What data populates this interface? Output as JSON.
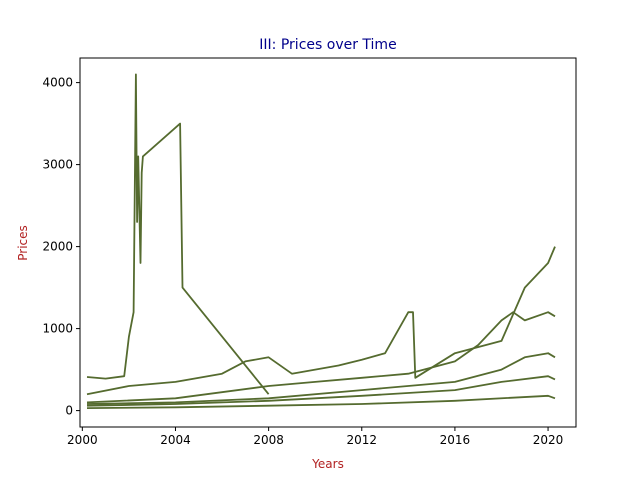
{
  "chart_data": {
    "type": "line",
    "title": "III: Prices over Time",
    "xlabel": "Years",
    "ylabel": "Prices",
    "xlim": [
      1999.9,
      2021.2
    ],
    "ylim": [
      -200,
      4300
    ],
    "x_ticks": [
      2000,
      2004,
      2008,
      2012,
      2016,
      2020
    ],
    "x_tick_labels": [
      "2000",
      "2004",
      "2008",
      "2012",
      "2016",
      "2020"
    ],
    "y_ticks": [
      0,
      1000,
      2000,
      3000,
      4000
    ],
    "y_tick_labels": [
      "0",
      "1000",
      "2000",
      "3000",
      "4000"
    ],
    "grid": false,
    "legend": "none",
    "colors": {
      "line": "#556b2f",
      "title": "#00008b",
      "axis_label": "#b22222"
    },
    "series": [
      {
        "x": [
          2000.2,
          2001.0,
          2001.8,
          2002.0,
          2002.2,
          2002.3,
          2002.35,
          2002.4,
          2002.5,
          2002.55,
          2002.6,
          2004.2,
          2004.3,
          2008.0
        ],
        "y": [
          410,
          390,
          420,
          900,
          1200,
          4100,
          2300,
          3100,
          1800,
          2900,
          3100,
          3500,
          1500,
          200
        ]
      },
      {
        "x": [
          2000.2,
          2002.0,
          2004.0,
          2006.0,
          2007.0,
          2008.0,
          2009.0,
          2010.0,
          2011.0,
          2012.0,
          2013.0,
          2014.0,
          2014.2,
          2014.3,
          2016.0,
          2018.0,
          2019.0,
          2020.0,
          2020.3
        ],
        "y": [
          200,
          300,
          350,
          450,
          600,
          650,
          450,
          500,
          550,
          620,
          700,
          1200,
          1200,
          400,
          700,
          850,
          1500,
          1800,
          2000
        ]
      },
      {
        "x": [
          2000.2,
          2004.0,
          2008.0,
          2010.0,
          2012.0,
          2014.0,
          2016.0,
          2017.0,
          2018.0,
          2018.5,
          2019.0,
          2020.0,
          2020.3
        ],
        "y": [
          100,
          150,
          300,
          350,
          400,
          450,
          600,
          800,
          1100,
          1200,
          1100,
          1200,
          1150
        ]
      },
      {
        "x": [
          2000.2,
          2004.0,
          2008.0,
          2012.0,
          2016.0,
          2018.0,
          2019.0,
          2020.0,
          2020.3
        ],
        "y": [
          80,
          100,
          150,
          250,
          350,
          500,
          650,
          700,
          650
        ]
      },
      {
        "x": [
          2000.2,
          2004.0,
          2008.0,
          2012.0,
          2016.0,
          2018.0,
          2020.0,
          2020.3
        ],
        "y": [
          60,
          80,
          120,
          180,
          250,
          350,
          420,
          380
        ]
      },
      {
        "x": [
          2000.2,
          2004.0,
          2008.0,
          2012.0,
          2016.0,
          2020.0,
          2020.3
        ],
        "y": [
          30,
          40,
          60,
          80,
          120,
          180,
          150
        ]
      }
    ]
  }
}
